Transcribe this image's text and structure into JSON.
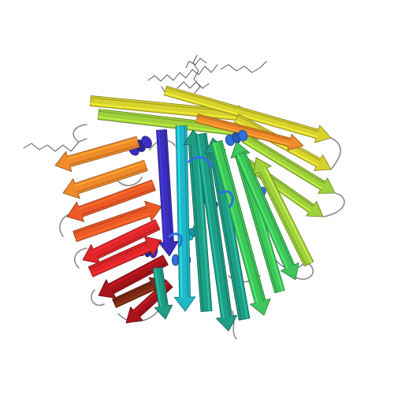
{
  "image": {
    "subject": "protein-ribbon-structure",
    "style": "cartoon-ribbon",
    "background": "#ffffff"
  },
  "palette": {
    "n_terminus": "#3b2fbf",
    "blue": "#2f6fe0",
    "cyan": "#1fb8c8",
    "teal": "#1f9e86",
    "green": "#3ec75a",
    "lime": "#9fd23a",
    "yellow": "#d8d22e",
    "orange": "#f08a2a",
    "orange_red": "#ee5a26",
    "red": "#e0262a",
    "dark_red": "#a8141c",
    "brown": "#7a2a16",
    "ligand": "#555555"
  }
}
